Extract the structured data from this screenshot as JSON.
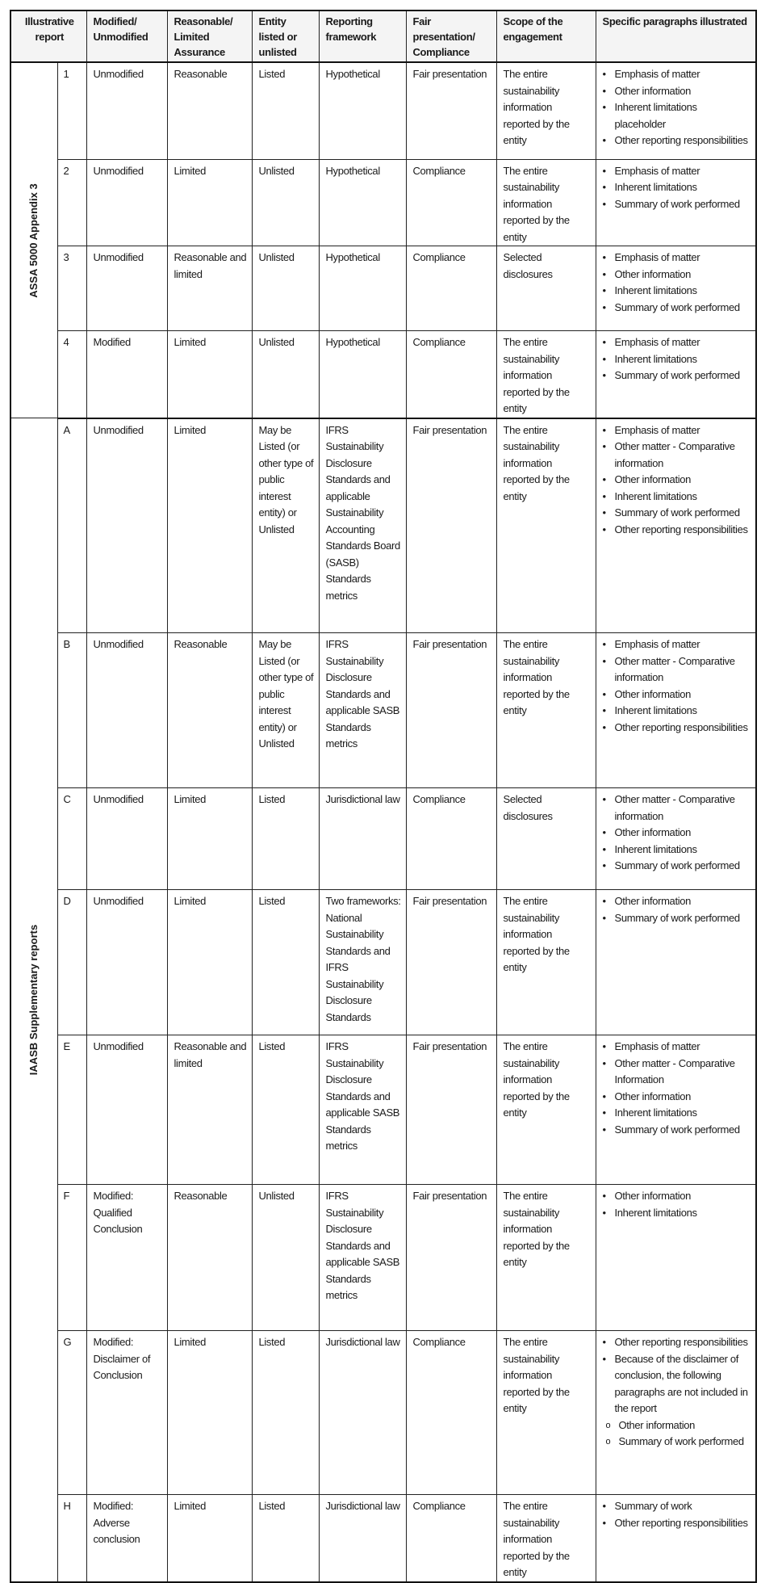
{
  "headers": {
    "illustrative_report": "Illustrative report",
    "modified": "Modified/ Unmodified",
    "assurance": "Reasonable/ Limited Assurance",
    "entity": "Entity listed or unlisted",
    "framework": "Reporting framework",
    "fair": "Fair presentation/ Compliance",
    "scope": "Scope of the engagement",
    "paragraphs": "Specific paragraphs illustrated"
  },
  "groups": [
    {
      "label": "ASSA 5000 Appendix 3",
      "rows": [
        {
          "id": "1",
          "modified": "Unmodified",
          "assurance": "Reasonable",
          "entity": "Listed",
          "framework": "Hypothetical",
          "fair": "Fair presentation",
          "scope": "The entire sustainability information reported by the entity",
          "paragraphs": [
            {
              "text": "Emphasis of matter"
            },
            {
              "text": "Other information"
            },
            {
              "text": "Inherent limitations placeholder"
            },
            {
              "text": "Other reporting responsibilities"
            }
          ]
        },
        {
          "id": "2",
          "modified": "Unmodified",
          "assurance": "Limited",
          "entity": "Unlisted",
          "framework": "Hypothetical",
          "fair": "Compliance",
          "scope": "The entire sustainability information reported by the entity",
          "paragraphs": [
            {
              "text": "Emphasis of matter"
            },
            {
              "text": "Inherent limitations"
            },
            {
              "text": "Summary of work performed"
            }
          ]
        },
        {
          "id": "3",
          "modified": "Unmodified",
          "assurance": "Reasonable and limited",
          "entity": "Unlisted",
          "framework": "Hypothetical",
          "fair": "Compliance",
          "scope": "Selected disclosures",
          "paragraphs": [
            {
              "text": "Emphasis of matter"
            },
            {
              "text": "Other information"
            },
            {
              "text": "Inherent limitations"
            },
            {
              "text": "Summary of work performed"
            }
          ]
        },
        {
          "id": "4",
          "modified": "Modified",
          "assurance": "Limited",
          "entity": "Unlisted",
          "framework": "Hypothetical",
          "fair": "Compliance",
          "scope": "The entire sustainability information reported by the entity",
          "paragraphs": [
            {
              "text": "Emphasis of matter"
            },
            {
              "text": "Inherent limitations"
            },
            {
              "text": "Summary of work performed"
            }
          ]
        }
      ]
    },
    {
      "label": "IAASB Supplementary reports",
      "rows": [
        {
          "id": "A",
          "modified": "Unmodified",
          "assurance": "Limited",
          "entity": "May be Listed (or other type of public interest entity) or Unlisted",
          "framework": "IFRS Sustainability Disclosure Standards and applicable Sustainability Accounting Standards Board (SASB) Standards metrics",
          "fair": "Fair presentation",
          "scope": "The entire sustainability information reported by the entity",
          "paragraphs": [
            {
              "text": "Emphasis of matter"
            },
            {
              "text": "Other matter - Comparative information"
            },
            {
              "text": "Other information"
            },
            {
              "text": "Inherent limitations"
            },
            {
              "text": "Summary of work performed"
            },
            {
              "text": "Other reporting responsibilities"
            }
          ]
        },
        {
          "id": "B",
          "modified": "Unmodified",
          "assurance": "Reasonable",
          "entity": "May be Listed (or other type of public interest entity) or Unlisted",
          "framework": "IFRS Sustainability Disclosure Standards and applicable SASB Standards metrics",
          "fair": "Fair presentation",
          "scope": "The entire sustainability information reported by the entity",
          "paragraphs": [
            {
              "text": "Emphasis of matter"
            },
            {
              "text": "Other matter - Comparative information"
            },
            {
              "text": "Other information"
            },
            {
              "text": "Inherent limitations"
            },
            {
              "text": "Other reporting responsibilities"
            }
          ]
        },
        {
          "id": "C",
          "modified": "Unmodified",
          "assurance": "Limited",
          "entity": "Listed",
          "framework": "Jurisdictional law",
          "fair": "Compliance",
          "scope": "Selected disclosures",
          "paragraphs": [
            {
              "text": "Other matter - Comparative information"
            },
            {
              "text": "Other information"
            },
            {
              "text": "Inherent limitations"
            },
            {
              "text": "Summary of work performed"
            }
          ]
        },
        {
          "id": "D",
          "modified": "Unmodified",
          "assurance": "Limited",
          "entity": "Listed",
          "framework": "Two frameworks: National Sustainability Standards and IFRS Sustainability Disclosure Standards",
          "fair": "Fair presentation",
          "scope": "The entire sustainability information reported by the entity",
          "paragraphs": [
            {
              "text": "Other information"
            },
            {
              "text": "Summary of work performed"
            }
          ]
        },
        {
          "id": "E",
          "modified": "Unmodified",
          "assurance": "Reasonable and limited",
          "entity": "Listed",
          "framework": "IFRS Sustainability Disclosure Standards and applicable SASB Standards metrics",
          "fair": "Fair presentation",
          "scope": "The entire sustainability information reported by the entity",
          "paragraphs": [
            {
              "text": "Emphasis of matter"
            },
            {
              "text": "Other matter - Comparative Information"
            },
            {
              "text": "Other information"
            },
            {
              "text": "Inherent limitations"
            },
            {
              "text": "Summary of work performed"
            }
          ]
        },
        {
          "id": "F",
          "modified": "Modified: Qualified Conclusion",
          "assurance": "Reasonable",
          "entity": "Unlisted",
          "framework": "IFRS Sustainability Disclosure Standards and applicable SASB Standards metrics",
          "fair": "Fair presentation",
          "scope": "The entire sustainability information reported by the entity",
          "paragraphs": [
            {
              "text": "Other information"
            },
            {
              "text": "Inherent limitations"
            }
          ]
        },
        {
          "id": "G",
          "modified": "Modified: Disclaimer of Conclusion",
          "assurance": "Limited",
          "entity": "Listed",
          "framework": "Jurisdictional law",
          "fair": "Compliance",
          "scope": "The entire sustainability information reported by the entity",
          "paragraphs": [
            {
              "text": "Other reporting responsibilities"
            },
            {
              "text": "Because of the disclaimer of conclusion, the following paragraphs are not included in the report",
              "sub": [
                "Other information",
                "Summary of work performed"
              ]
            }
          ]
        },
        {
          "id": "H",
          "modified": "Modified: Adverse conclusion",
          "assurance": "Limited",
          "entity": "Listed",
          "framework": "Jurisdictional law",
          "fair": "Compliance",
          "scope": "The entire sustainability information reported by the entity",
          "paragraphs": [
            {
              "text": "Summary of work"
            },
            {
              "text": "Other reporting responsibilities"
            }
          ]
        }
      ]
    }
  ]
}
